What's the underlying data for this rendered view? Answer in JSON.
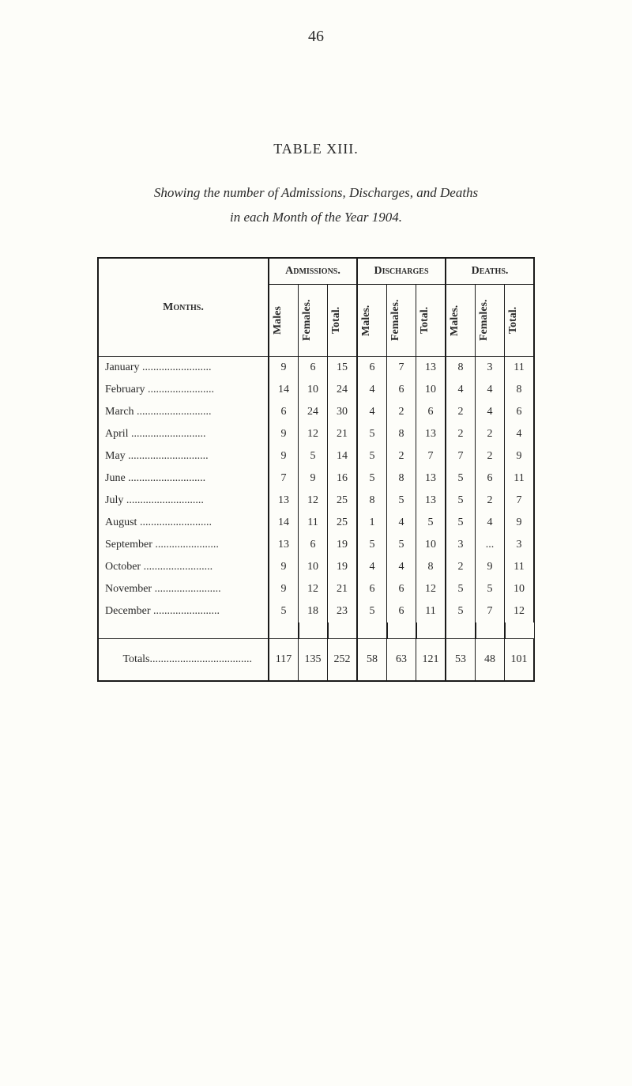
{
  "page_number": "46",
  "table_title": "TABLE XIII.",
  "caption_line1": "Showing the number of Admissions, Discharges, and Deaths",
  "caption_line2": "in each Month of the Year 1904.",
  "group_headers": {
    "admissions": "Admissions.",
    "discharges": "Discharges",
    "deaths": "Deaths."
  },
  "months_label": "Months.",
  "col_headers": {
    "males": "Males",
    "males_dot": "Males.",
    "females": "Females.",
    "total": "Total."
  },
  "rows": [
    {
      "month": "January",
      "a_m": "9",
      "a_f": "6",
      "a_t": "15",
      "d_m": "6",
      "d_f": "7",
      "d_t": "13",
      "x_m": "8",
      "x_f": "3",
      "x_t": "11"
    },
    {
      "month": "February",
      "a_m": "14",
      "a_f": "10",
      "a_t": "24",
      "d_m": "4",
      "d_f": "6",
      "d_t": "10",
      "x_m": "4",
      "x_f": "4",
      "x_t": "8"
    },
    {
      "month": "March",
      "a_m": "6",
      "a_f": "24",
      "a_t": "30",
      "d_m": "4",
      "d_f": "2",
      "d_t": "6",
      "x_m": "2",
      "x_f": "4",
      "x_t": "6"
    },
    {
      "month": "April",
      "a_m": "9",
      "a_f": "12",
      "a_t": "21",
      "d_m": "5",
      "d_f": "8",
      "d_t": "13",
      "x_m": "2",
      "x_f": "2",
      "x_t": "4"
    },
    {
      "month": "May",
      "a_m": "9",
      "a_f": "5",
      "a_t": "14",
      "d_m": "5",
      "d_f": "2",
      "d_t": "7",
      "x_m": "7",
      "x_f": "2",
      "x_t": "9"
    },
    {
      "month": "June",
      "a_m": "7",
      "a_f": "9",
      "a_t": "16",
      "d_m": "5",
      "d_f": "8",
      "d_t": "13",
      "x_m": "5",
      "x_f": "6",
      "x_t": "11"
    },
    {
      "month": "July",
      "a_m": "13",
      "a_f": "12",
      "a_t": "25",
      "d_m": "8",
      "d_f": "5",
      "d_t": "13",
      "x_m": "5",
      "x_f": "2",
      "x_t": "7"
    },
    {
      "month": "August",
      "a_m": "14",
      "a_f": "11",
      "a_t": "25",
      "d_m": "1",
      "d_f": "4",
      "d_t": "5",
      "x_m": "5",
      "x_f": "4",
      "x_t": "9"
    },
    {
      "month": "September",
      "a_m": "13",
      "a_f": "6",
      "a_t": "19",
      "d_m": "5",
      "d_f": "5",
      "d_t": "10",
      "x_m": "3",
      "x_f": "...",
      "x_t": "3"
    },
    {
      "month": "October",
      "a_m": "9",
      "a_f": "10",
      "a_t": "19",
      "d_m": "4",
      "d_f": "4",
      "d_t": "8",
      "x_m": "2",
      "x_f": "9",
      "x_t": "11"
    },
    {
      "month": "November",
      "a_m": "9",
      "a_f": "12",
      "a_t": "21",
      "d_m": "6",
      "d_f": "6",
      "d_t": "12",
      "x_m": "5",
      "x_f": "5",
      "x_t": "10"
    },
    {
      "month": "December",
      "a_m": "5",
      "a_f": "18",
      "a_t": "23",
      "d_m": "5",
      "d_f": "6",
      "d_t": "11",
      "x_m": "5",
      "x_f": "7",
      "x_t": "12"
    }
  ],
  "totals": {
    "label": "Totals",
    "a_m": "117",
    "a_f": "135",
    "a_t": "252",
    "d_m": "58",
    "d_f": "63",
    "d_t": "121",
    "x_m": "53",
    "x_f": "48",
    "x_t": "101"
  },
  "dots": "....................................."
}
